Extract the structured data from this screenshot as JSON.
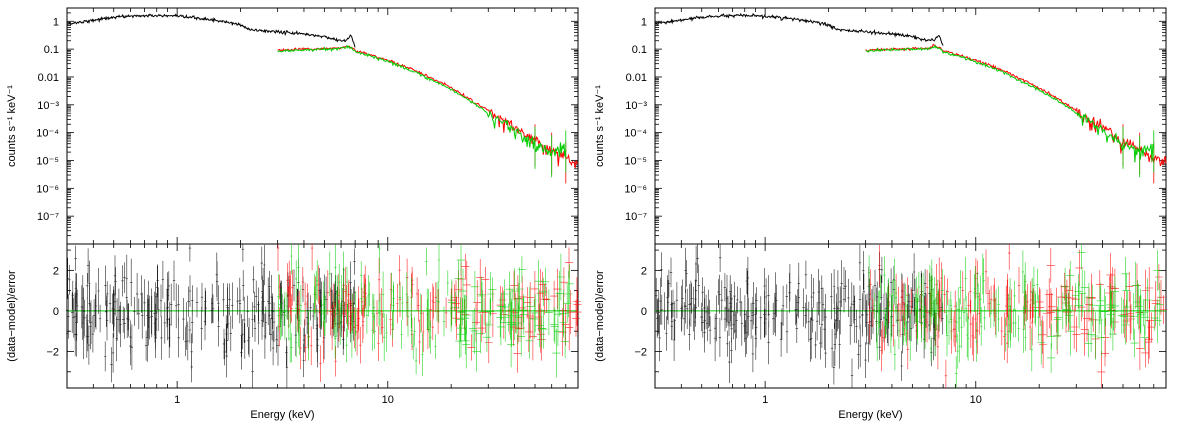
{
  "chart_data": [
    {
      "type": "line",
      "panel": "left",
      "xscale": "log",
      "xlabel": "Energy (keV)",
      "xlim": [
        0.3,
        80
      ],
      "x_ticks": [
        1,
        10
      ],
      "x_tick_labels": [
        "1",
        "10"
      ],
      "top": {
        "ylabel": "counts s⁻¹ keV⁻¹",
        "yscale": "log",
        "ylim": [
          1e-08,
          3
        ],
        "y_ticks": [
          1,
          0.1,
          0.01,
          0.001,
          0.0001,
          1e-05,
          1e-06,
          1e-07
        ],
        "y_tick_labels": [
          "1",
          "0.1",
          "0.01",
          "10⁻³",
          "10⁻⁴",
          "10⁻⁵",
          "10⁻⁶",
          "10⁻⁷"
        ],
        "series": [
          {
            "name": "black",
            "color": "#000000",
            "x": [
              0.3,
              0.4,
              0.5,
              0.6,
              0.8,
              1.0,
              1.2,
              1.5,
              2.0,
              2.2,
              3.0,
              4.0,
              5.0,
              6.0,
              6.4,
              6.7,
              7.0
            ],
            "y": [
              0.8,
              1.1,
              1.4,
              1.55,
              1.6,
              1.5,
              1.35,
              1.1,
              0.75,
              0.5,
              0.42,
              0.35,
              0.28,
              0.2,
              0.22,
              0.3,
              0.12
            ]
          },
          {
            "name": "red",
            "color": "#ff0000",
            "x": [
              3,
              4,
              5,
              6,
              6.4,
              6.8,
              7,
              8,
              10,
              12,
              15,
              20,
              25,
              30,
              35,
              40,
              50,
              60,
              70,
              80
            ],
            "y": [
              0.09,
              0.1,
              0.105,
              0.11,
              0.13,
              0.11,
              0.085,
              0.065,
              0.04,
              0.025,
              0.012,
              0.004,
              0.0015,
              0.0006,
              0.00028,
              0.00015,
              5e-05,
              2.5e-05,
              1.2e-05,
              9e-06
            ]
          },
          {
            "name": "green",
            "color": "#00cc00",
            "x": [
              3,
              4,
              5,
              6,
              6.4,
              6.8,
              7,
              8,
              10,
              12,
              15,
              20,
              25,
              30,
              35,
              40,
              50,
              60,
              70
            ],
            "y": [
              0.085,
              0.095,
              0.1,
              0.105,
              0.125,
              0.1,
              0.08,
              0.06,
              0.036,
              0.022,
              0.01,
              0.0035,
              0.0013,
              0.0005,
              0.00024,
              0.00012,
              4e-05,
              2e-05,
              3e-05
            ]
          }
        ]
      },
      "bottom": {
        "ylabel": "(data−model)/error",
        "ylim": [
          -3.8,
          3.3
        ],
        "y_ticks": [
          2,
          0,
          -2
        ],
        "y_tick_labels": [
          "2",
          "0",
          "−2"
        ],
        "zero_line_color": "#00cc00",
        "series": [
          {
            "name": "black",
            "color": "#000000",
            "x_range": [
              0.3,
              7.0
            ],
            "count": 260,
            "spread": 1.0
          },
          {
            "name": "red",
            "color": "#ff0000",
            "x_range": [
              3.0,
              80
            ],
            "count": 150,
            "spread": 1.0
          },
          {
            "name": "green",
            "color": "#00cc00",
            "x_range": [
              3.0,
              75
            ],
            "count": 170,
            "spread": 1.0
          }
        ]
      }
    },
    {
      "type": "line",
      "panel": "right",
      "xscale": "log",
      "xlabel": "Energy (keV)",
      "xlim": [
        0.3,
        80
      ],
      "x_ticks": [
        1,
        10
      ],
      "x_tick_labels": [
        "1",
        "10"
      ],
      "top": {
        "ylabel": "counts s⁻¹ keV⁻¹",
        "yscale": "log",
        "ylim": [
          1e-08,
          3
        ],
        "y_ticks": [
          1,
          0.1,
          0.01,
          0.001,
          0.0001,
          1e-05,
          1e-06,
          1e-07
        ],
        "y_tick_labels": [
          "1",
          "0.1",
          "0.01",
          "10⁻³",
          "10⁻⁴",
          "10⁻⁵",
          "10⁻⁶",
          "10⁻⁷"
        ],
        "series": [
          {
            "name": "black",
            "color": "#000000",
            "x": [
              0.3,
              0.4,
              0.5,
              0.6,
              0.8,
              1.0,
              1.2,
              1.5,
              2.0,
              2.2,
              3.0,
              4.0,
              5.0,
              6.0,
              6.4,
              6.7,
              7.0
            ],
            "y": [
              0.8,
              1.1,
              1.4,
              1.55,
              1.6,
              1.5,
              1.35,
              1.1,
              0.75,
              0.5,
              0.42,
              0.35,
              0.28,
              0.2,
              0.22,
              0.3,
              0.12
            ]
          },
          {
            "name": "red",
            "color": "#ff0000",
            "x": [
              3,
              4,
              5,
              6,
              6.4,
              6.8,
              7,
              8,
              10,
              12,
              15,
              20,
              25,
              30,
              35,
              40,
              50,
              60,
              70,
              80
            ],
            "y": [
              0.09,
              0.1,
              0.105,
              0.11,
              0.13,
              0.11,
              0.085,
              0.065,
              0.04,
              0.025,
              0.012,
              0.004,
              0.0015,
              0.0006,
              0.00028,
              0.00015,
              5e-05,
              2.5e-05,
              1.2e-05,
              9e-06
            ]
          },
          {
            "name": "green",
            "color": "#00cc00",
            "x": [
              3,
              4,
              5,
              6,
              6.4,
              6.8,
              7,
              8,
              10,
              12,
              15,
              20,
              25,
              30,
              35,
              40,
              50,
              60,
              70
            ],
            "y": [
              0.085,
              0.095,
              0.1,
              0.105,
              0.125,
              0.1,
              0.08,
              0.06,
              0.036,
              0.022,
              0.01,
              0.0035,
              0.0013,
              0.0005,
              0.00024,
              0.00012,
              4e-05,
              2e-05,
              3e-05
            ]
          }
        ]
      },
      "bottom": {
        "ylabel": "(data−model)/error",
        "ylim": [
          -3.8,
          3.3
        ],
        "y_ticks": [
          2,
          0,
          -2
        ],
        "y_tick_labels": [
          "2",
          "0",
          "−2"
        ],
        "zero_line_color": "#00cc00",
        "series": [
          {
            "name": "black",
            "color": "#000000",
            "x_range": [
              0.3,
              7.0
            ],
            "count": 260,
            "spread": 1.0
          },
          {
            "name": "red",
            "color": "#ff0000",
            "x_range": [
              3.0,
              80
            ],
            "count": 150,
            "spread": 1.0
          },
          {
            "name": "green",
            "color": "#00cc00",
            "x_range": [
              3.0,
              75
            ],
            "count": 170,
            "spread": 1.0
          }
        ]
      }
    }
  ]
}
